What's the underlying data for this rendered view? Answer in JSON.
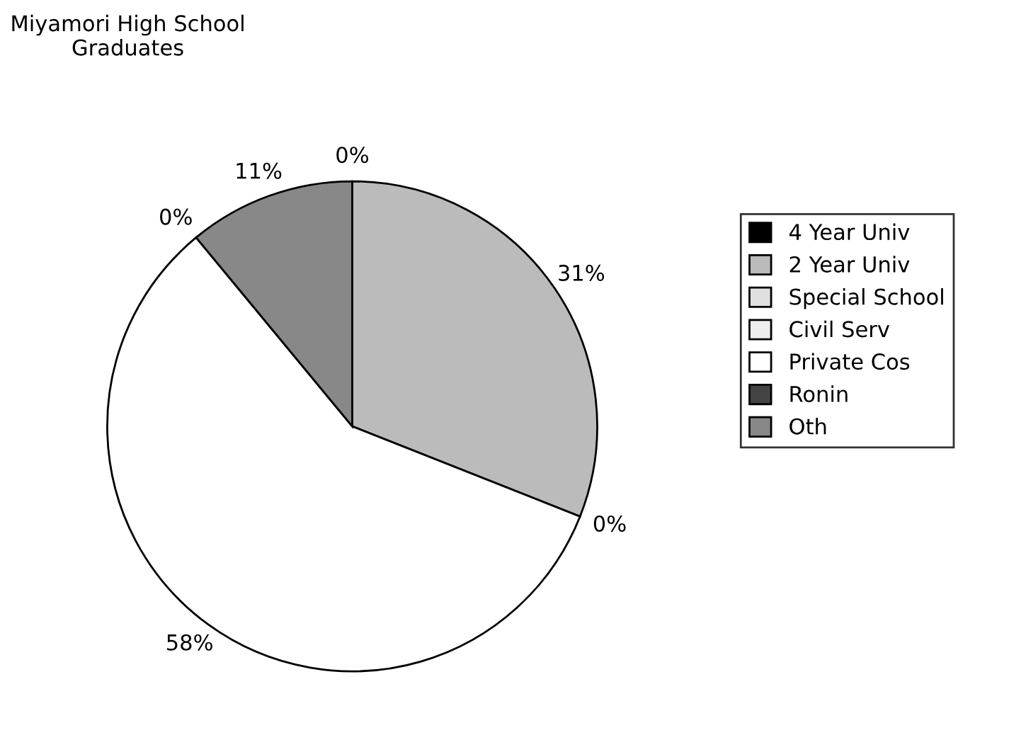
{
  "chart_data": {
    "type": "pie",
    "title": "Miyamori High School\nGraduates",
    "categories": [
      "4 Year Univ",
      "2 Year Univ",
      "Special School",
      "Civil Serv",
      "Private Cos",
      "Ronin",
      "Oth"
    ],
    "values": [
      0,
      31,
      0,
      0,
      58,
      0,
      11
    ],
    "value_labels": [
      "0%",
      "31%",
      "0%",
      null,
      "58%",
      "0%",
      "11%"
    ],
    "colors": [
      "#000000",
      "#bbbbbb",
      "#e0e0e0",
      "#eeeeee",
      "#ffffff",
      "#444444",
      "#888888"
    ],
    "legend": "right"
  }
}
